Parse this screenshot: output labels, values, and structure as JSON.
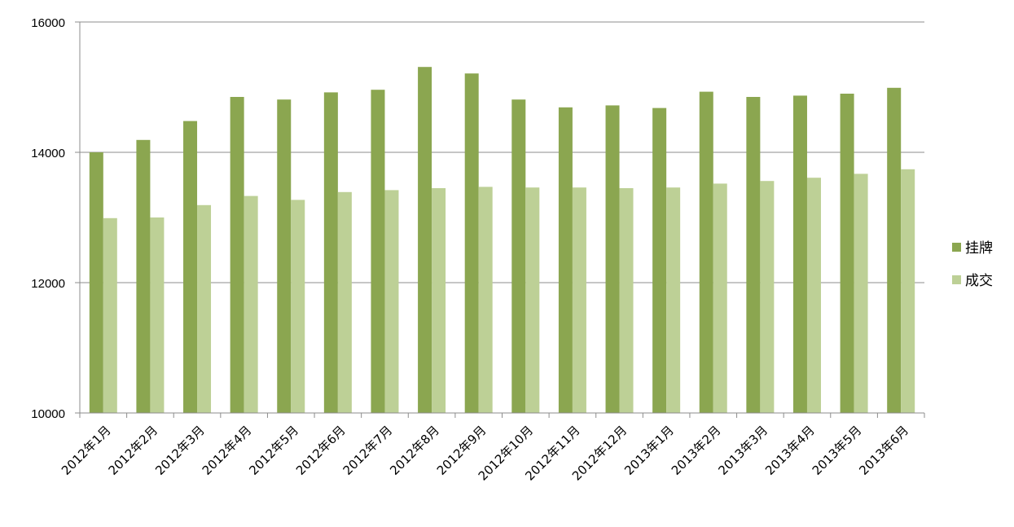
{
  "chart_data": {
    "type": "bar",
    "categories": [
      "2012年1月",
      "2012年2月",
      "2012年3月",
      "2012年4月",
      "2012年5月",
      "2012年6月",
      "2012年7月",
      "2012年8月",
      "2012年9月",
      "2012年10月",
      "2012年11月",
      "2012年12月",
      "2013年1月",
      "2013年2月",
      "2013年3月",
      "2013年4月",
      "2013年5月",
      "2013年6月"
    ],
    "series": [
      {
        "name": "挂牌",
        "color": "#8BA650",
        "values": [
          14000,
          14190,
          14480,
          14850,
          14810,
          14920,
          14960,
          15310,
          15210,
          14810,
          14690,
          14720,
          14680,
          14930,
          14850,
          14870,
          14900,
          14990
        ]
      },
      {
        "name": "成交",
        "color": "#BDD096",
        "values": [
          12990,
          13000,
          13190,
          13330,
          13270,
          13390,
          13420,
          13450,
          13470,
          13460,
          13460,
          13450,
          13460,
          13520,
          13560,
          13610,
          13670,
          13740
        ]
      }
    ],
    "ylim": [
      10000,
      16000
    ],
    "yticks": [
      10000,
      12000,
      14000,
      16000
    ],
    "ytick_labels": [
      "10000",
      "12000",
      "14000",
      "16000"
    ],
    "grid": true,
    "legend_position": "right"
  }
}
